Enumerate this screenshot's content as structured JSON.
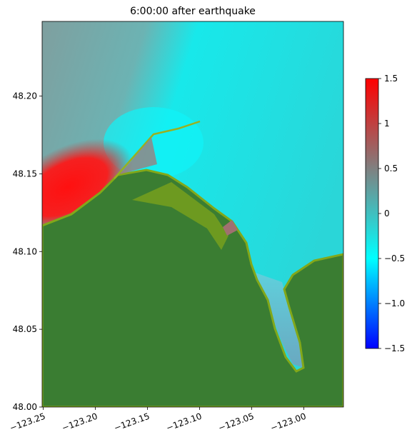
{
  "chart_data": {
    "type": "map",
    "title": "6:00:00 after earthquake",
    "xlim": [
      -123.251,
      -122.962
    ],
    "ylim": [
      48.0,
      48.248
    ],
    "xticks": [
      {
        "value": -123.25,
        "label": "−123.25"
      },
      {
        "value": -123.2,
        "label": "−123.20"
      },
      {
        "value": -123.15,
        "label": "−123.15"
      },
      {
        "value": -123.1,
        "label": "−123.10"
      },
      {
        "value": -123.05,
        "label": "−123.05"
      },
      {
        "value": -123.0,
        "label": "−123.00"
      }
    ],
    "yticks": [
      {
        "value": 48.0,
        "label": "48.00"
      },
      {
        "value": 48.05,
        "label": "48.05"
      },
      {
        "value": 48.1,
        "label": "48.10"
      },
      {
        "value": 48.15,
        "label": "48.15"
      },
      {
        "value": 48.2,
        "label": "48.20"
      }
    ],
    "colorbar": {
      "lim": [
        -1.5,
        1.5
      ],
      "ticks": [
        {
          "value": -1.5,
          "label": "−1.5"
        },
        {
          "value": -1.0,
          "label": "−1.0"
        },
        {
          "value": -0.5,
          "label": "−0.5"
        },
        0.0,
        0.5,
        1.0,
        1.5
      ],
      "colors": [
        "#0000ff",
        "#00ffff",
        "#808080",
        "#ff0000"
      ]
    },
    "land_color": "#3a7d32"
  }
}
